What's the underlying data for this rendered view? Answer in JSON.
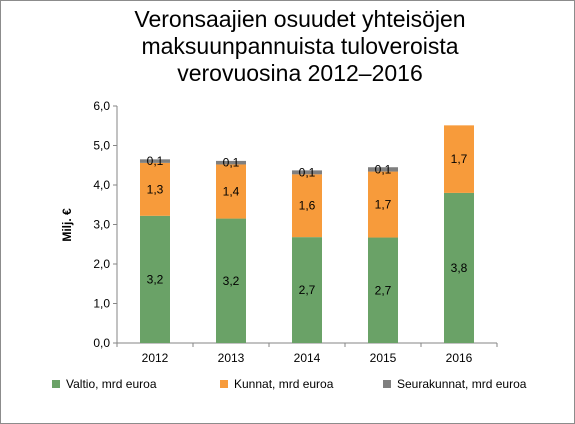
{
  "chart_data": {
    "type": "bar",
    "stacked": true,
    "title_lines": [
      "Veronsaajien osuudet yhteisöjen",
      "maksuunpannuista tuloveroista",
      "verovuosina  2012–2016"
    ],
    "ylabel": "Milj. €",
    "ylim": [
      0,
      6
    ],
    "yticks": [
      "0,0",
      "1,0",
      "2,0",
      "3,0",
      "4,0",
      "5,0",
      "6,0"
    ],
    "categories": [
      "2012",
      "2013",
      "2014",
      "2015",
      "2016"
    ],
    "series": [
      {
        "name": "Valtio, mrd euroa",
        "color": "#6aa267",
        "values": [
          3.22,
          3.15,
          2.68,
          2.67,
          3.8
        ],
        "labels": [
          "3,2",
          "3,2",
          "2,7",
          "2,7",
          "3,8"
        ]
      },
      {
        "name": "Kunnat, mrd euroa",
        "color": "#f79b3b",
        "values": [
          1.34,
          1.37,
          1.59,
          1.67,
          1.71
        ],
        "labels": [
          "1,3",
          "1,4",
          "1,6",
          "1,7",
          "1,7"
        ]
      },
      {
        "name": "Seurakunnat, mrd euroa",
        "color": "#7f7f7f",
        "values": [
          0.09,
          0.09,
          0.1,
          0.11,
          0
        ],
        "labels": [
          "0,1",
          "0,1",
          "0,1",
          "0,1",
          ""
        ]
      }
    ],
    "legend_position": "bottom",
    "grid": false
  }
}
